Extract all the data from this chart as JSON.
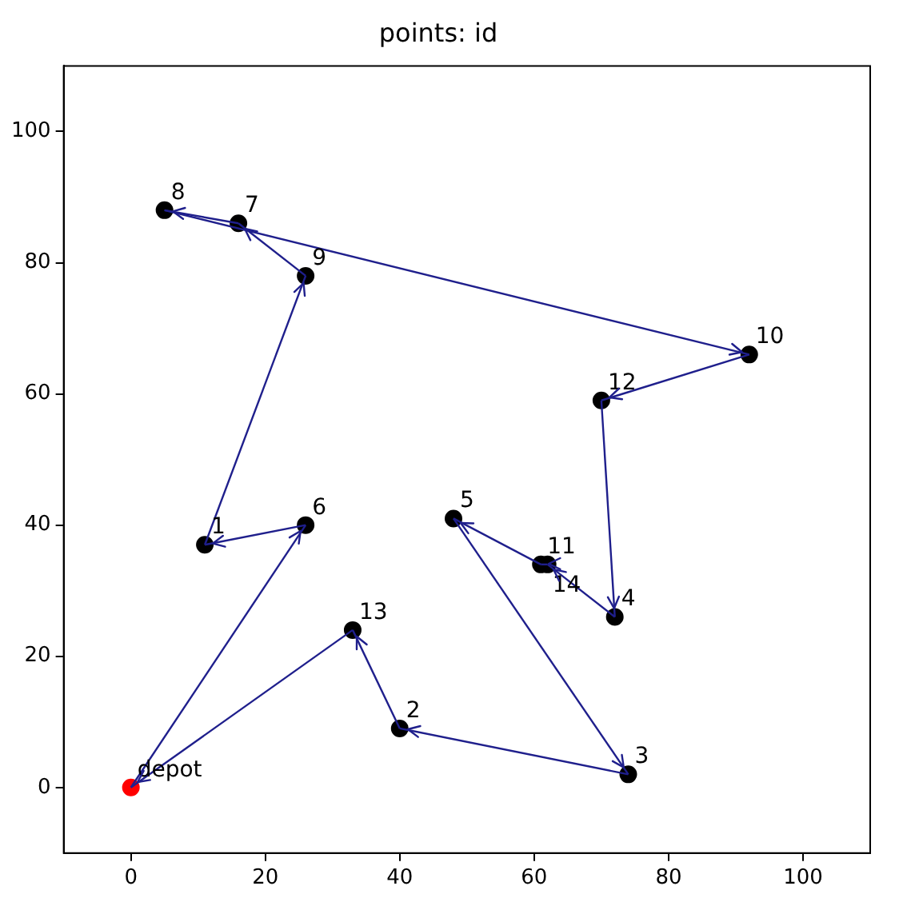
{
  "chart_data": {
    "type": "scatter",
    "title": "points: id",
    "xlim": [
      -10,
      110
    ],
    "ylim": [
      -10,
      110
    ],
    "xticks": [
      0,
      20,
      40,
      60,
      80,
      100
    ],
    "yticks": [
      0,
      20,
      40,
      60,
      80,
      100
    ],
    "grid": false,
    "legend": false,
    "marker": "circle",
    "series": [
      {
        "type": "line",
        "color": "#1f1f8c",
        "marker": "none",
        "x": [
          0,
          26
        ],
        "values": [
          0,
          40
        ]
      },
      {
        "type": "line",
        "color": "#1f1f8c",
        "marker": "none",
        "x": [
          26,
          11
        ],
        "values": [
          40,
          37
        ]
      },
      {
        "type": "line",
        "color": "#1f1f8c",
        "marker": "none",
        "x": [
          11,
          26
        ],
        "values": [
          37,
          78
        ]
      },
      {
        "type": "line",
        "color": "#1f1f8c",
        "marker": "none",
        "x": [
          26,
          16
        ],
        "values": [
          78,
          86
        ]
      },
      {
        "type": "line",
        "color": "#1f1f8c",
        "marker": "none",
        "x": [
          16,
          5
        ],
        "values": [
          86,
          88
        ]
      },
      {
        "type": "line",
        "color": "#1f1f8c",
        "marker": "none",
        "x": [
          5,
          92
        ],
        "values": [
          88,
          66
        ]
      },
      {
        "type": "line",
        "color": "#1f1f8c",
        "marker": "none",
        "x": [
          92,
          70
        ],
        "values": [
          66,
          59
        ]
      },
      {
        "type": "line",
        "color": "#1f1f8c",
        "marker": "none",
        "x": [
          70,
          72
        ],
        "values": [
          59,
          26
        ]
      },
      {
        "type": "line",
        "color": "#1f1f8c",
        "marker": "none",
        "x": [
          72,
          62
        ],
        "values": [
          26,
          34
        ]
      },
      {
        "type": "line",
        "color": "#1f1f8c",
        "marker": "none",
        "x": [
          62,
          61
        ],
        "values": [
          34,
          34
        ]
      },
      {
        "type": "line",
        "color": "#1f1f8c",
        "marker": "none",
        "x": [
          61,
          48
        ],
        "values": [
          34,
          41
        ]
      },
      {
        "type": "line",
        "color": "#1f1f8c",
        "marker": "none",
        "x": [
          48,
          74
        ],
        "values": [
          41,
          2
        ]
      },
      {
        "type": "line",
        "color": "#1f1f8c",
        "marker": "none",
        "x": [
          74,
          40
        ],
        "values": [
          2,
          9
        ]
      },
      {
        "type": "line",
        "color": "#1f1f8c",
        "marker": "none",
        "x": [
          40,
          33
        ],
        "values": [
          9,
          24
        ]
      },
      {
        "type": "line",
        "color": "#1f1f8c",
        "marker": "none",
        "x": [
          33,
          0
        ],
        "values": [
          24,
          0
        ]
      },
      {
        "type": "scatter",
        "x": [
          0,
          11,
          40,
          74,
          72,
          48,
          26,
          16,
          5,
          26,
          92,
          61,
          70,
          33,
          62
        ],
        "values": [
          0,
          37,
          9,
          2,
          26,
          41,
          40,
          86,
          88,
          78,
          66,
          34,
          59,
          24,
          34
        ],
        "colors": [
          "#ff0000",
          "#000000",
          "#000000",
          "#000000",
          "#000000",
          "#000000",
          "#000000",
          "#000000",
          "#000000",
          "#000000",
          "#000000",
          "#000000",
          "#000000",
          "#000000",
          "#000000"
        ]
      }
    ],
    "annotations": [
      {
        "text": "depot",
        "x": 0,
        "y": 0
      },
      {
        "text": "1",
        "x": 11,
        "y": 37
      },
      {
        "text": "2",
        "x": 40,
        "y": 9
      },
      {
        "text": "3",
        "x": 74,
        "y": 2
      },
      {
        "text": "4",
        "x": 72,
        "y": 26
      },
      {
        "text": "5",
        "x": 48,
        "y": 41
      },
      {
        "text": "6",
        "x": 26,
        "y": 40
      },
      {
        "text": "7",
        "x": 16,
        "y": 86
      },
      {
        "text": "8",
        "x": 5,
        "y": 88
      },
      {
        "text": "9",
        "x": 26,
        "y": 78
      },
      {
        "text": "10",
        "x": 92,
        "y": 66
      },
      {
        "text": "11",
        "x": 61,
        "y": 34
      },
      {
        "text": "12",
        "x": 70,
        "y": 59
      },
      {
        "text": "13",
        "x": 33,
        "y": 24
      },
      {
        "text": "14",
        "x": 62,
        "y": 34
      }
    ]
  }
}
